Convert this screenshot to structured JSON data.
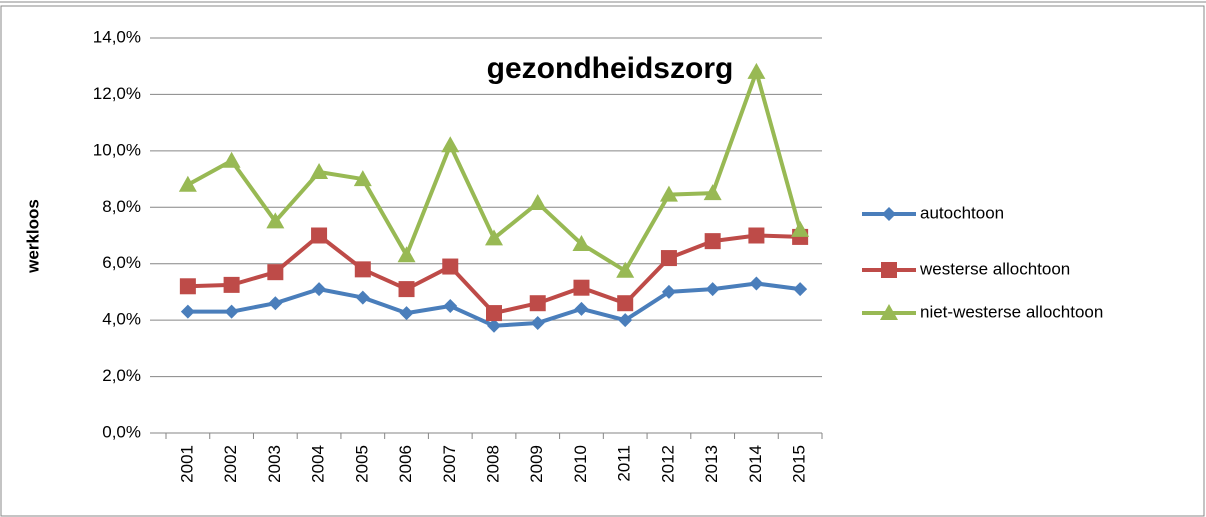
{
  "chart_data": {
    "type": "line",
    "title": "gezondheidszorg",
    "y_label": "werkloos",
    "categories": [
      "2001",
      "2002",
      "2003",
      "2004",
      "2005",
      "2006",
      "2007",
      "2008",
      "2009",
      "2010",
      "2011",
      "2012",
      "2013",
      "2014",
      "2015"
    ],
    "series": [
      {
        "name": "autochtoon",
        "color": "#4a7ebb",
        "marker": "diamond",
        "values": [
          4.3,
          4.3,
          4.6,
          5.1,
          4.8,
          4.25,
          4.5,
          3.8,
          3.9,
          4.4,
          4.0,
          5.0,
          5.1,
          5.3,
          5.1
        ]
      },
      {
        "name": "westerse allochtoon",
        "color": "#be4b48",
        "marker": "square",
        "values": [
          5.2,
          5.25,
          5.7,
          7.0,
          5.8,
          5.1,
          5.9,
          4.25,
          4.6,
          5.15,
          4.6,
          6.2,
          6.8,
          7.0,
          6.95
        ]
      },
      {
        "name": "niet-westerse allochtoon",
        "color": "#98b954",
        "marker": "triangle",
        "values": [
          8.8,
          9.65,
          7.5,
          9.25,
          9.0,
          6.3,
          10.2,
          6.9,
          8.15,
          6.7,
          5.75,
          8.45,
          8.5,
          12.8,
          7.2
        ]
      }
    ],
    "ylim": [
      0,
      14
    ],
    "yticks": [
      {
        "value": 0,
        "label": "0,0%"
      },
      {
        "value": 2,
        "label": "2,0%"
      },
      {
        "value": 4,
        "label": "4,0%"
      },
      {
        "value": 6,
        "label": "6,0%"
      },
      {
        "value": 8,
        "label": "8,0%"
      },
      {
        "value": 10,
        "label": "10,0%"
      },
      {
        "value": 12,
        "label": "12,0%"
      },
      {
        "value": 14,
        "label": "14,0%"
      }
    ],
    "grid": true,
    "legend": "right"
  }
}
